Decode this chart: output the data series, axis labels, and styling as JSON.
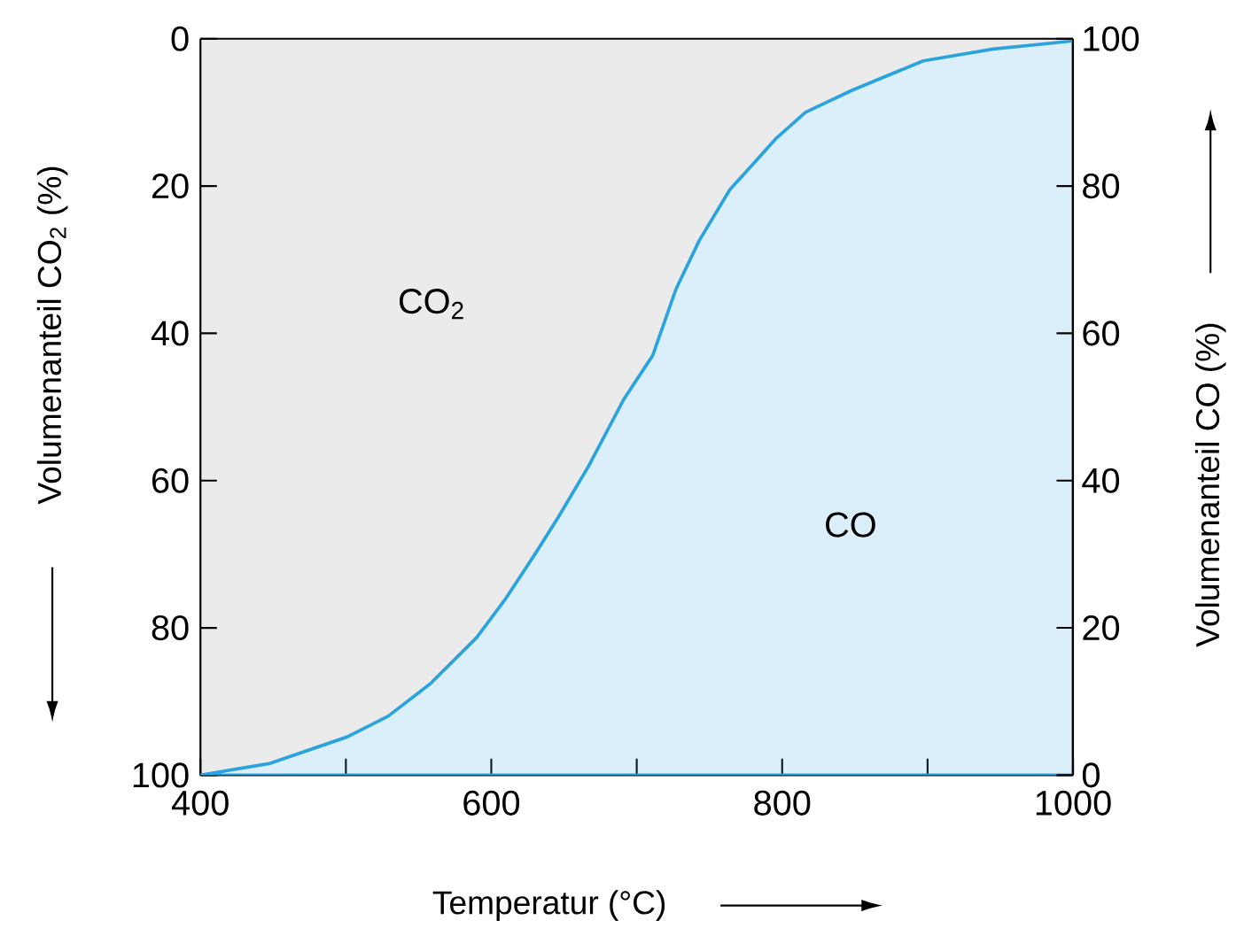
{
  "chart_data": {
    "type": "area",
    "xlabel": "Temperatur (°C)",
    "ylabel": "Volumenanteil CO$_{2}$ (%)",
    "y2label": "Volumenanteil CO (%)",
    "xlim": [
      400,
      1000
    ],
    "xticks": [
      400,
      {
        "value": 500,
        "label": null
      },
      600,
      {
        "value": 700,
        "label": null
      },
      800,
      {
        "value": 900,
        "label": null
      },
      1000
    ],
    "ylim": [
      100,
      0
    ],
    "yticks": [
      0,
      20,
      40,
      60,
      80,
      100
    ],
    "y2lim": [
      0,
      100
    ],
    "y2ticks": [
      0,
      20,
      40,
      60,
      80,
      100
    ],
    "x": [
      400,
      448,
      501,
      529,
      558,
      590,
      610,
      630,
      646,
      667,
      691,
      711,
      727,
      743,
      764,
      780,
      796,
      816,
      848,
      897,
      945,
      1000
    ],
    "series": [
      {
        "name": "CO$_{2}$",
        "color": "#ebebeb",
        "values": [
          100,
          98.4,
          94.8,
          92,
          87.6,
          81.3,
          76,
          70,
          65,
          58,
          49,
          43,
          34,
          27.4,
          20.5,
          17,
          13.5,
          10,
          7,
          3,
          1.4,
          0.3
        ]
      },
      {
        "name": "CO",
        "color": "#2aa3df",
        "axis": "y2",
        "values": [
          0,
          1.6,
          5.2,
          8,
          12.4,
          18.7,
          24,
          30,
          35,
          42,
          51,
          57,
          66,
          72.6,
          79.5,
          83,
          86.5,
          90,
          93,
          97,
          98.6,
          99.7
        ]
      }
    ]
  }
}
